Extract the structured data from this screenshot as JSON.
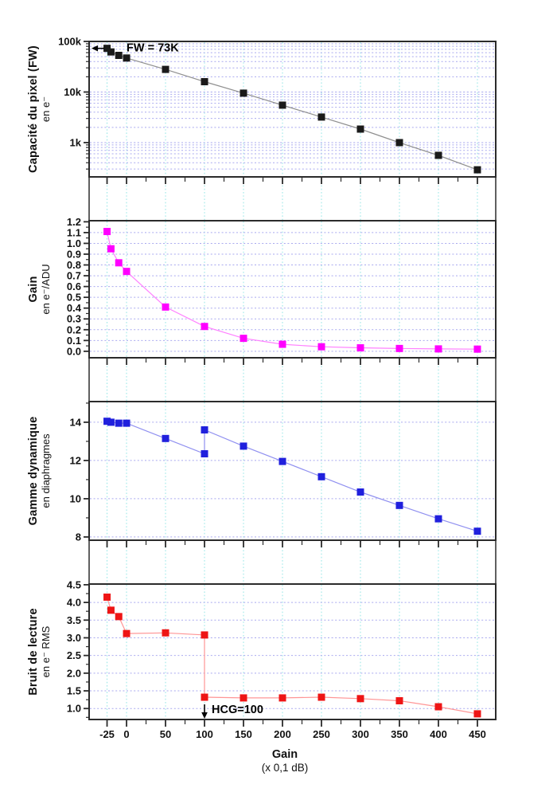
{
  "figure": {
    "x_axis": {
      "title": "Gain",
      "subtitle": "(x 0,1 dB)",
      "major_ticks": [
        -25,
        0,
        50,
        100,
        150,
        200,
        250,
        300,
        350,
        400,
        450
      ],
      "tick_labels": [
        "-25",
        "0",
        "50",
        "100",
        "150",
        "200",
        "250",
        "300",
        "350",
        "400",
        "450"
      ],
      "minor_ticks": [
        25,
        75,
        125,
        175,
        225,
        275,
        325,
        375,
        425
      ],
      "xlim": [
        -48,
        473.5
      ]
    },
    "style": {
      "frame_color": "#2b2b2b",
      "tick_color": "#2b2b2b",
      "h_grid_color": "#a9a9ef",
      "v_grid_color": "#93e6e6",
      "background": "#ffffff"
    }
  },
  "chart_data": [
    {
      "type": "line",
      "title": "Capacité du pixel (FW)",
      "subtitle": "en e⁻",
      "yscale": "log",
      "ylim": [
        210,
        100000
      ],
      "grid": true,
      "y_ticks": [
        100000,
        10000,
        1000
      ],
      "y_tick_labels": [
        "100k",
        "10k",
        "1k"
      ],
      "x": [
        -25,
        -20,
        -10,
        0,
        50,
        100,
        150,
        200,
        250,
        300,
        350,
        400,
        450
      ],
      "y": [
        73000,
        62000,
        53000,
        47000,
        28000,
        16000,
        9500,
        5500,
        3200,
        1850,
        1000,
        560,
        290
      ],
      "marker_color": "#1a1a1a",
      "line_color": "#8f8f8f",
      "annotation": {
        "text": "FW = 73K",
        "value": 73000,
        "arrow": "left-toward-axis"
      }
    },
    {
      "type": "line",
      "title": "Gain",
      "subtitle": "en e⁻/ADU",
      "yscale": "linear",
      "ylim": [
        -0.06,
        1.21
      ],
      "grid": true,
      "y_ticks": [
        0.0,
        0.1,
        0.2,
        0.3,
        0.4,
        0.5,
        0.6,
        0.7,
        0.8,
        0.9,
        1.0,
        1.1,
        1.2
      ],
      "y_tick_labels": [
        "0.0",
        "0.1",
        "0.2",
        "0.3",
        "0.4",
        "0.5",
        "0.6",
        "0.7",
        "0.8",
        "0.9",
        "1.0",
        "1.1",
        "1.2"
      ],
      "y_minor_ticks": [
        0.05,
        0.15,
        0.25,
        0.35,
        0.45,
        0.55,
        0.65,
        0.75,
        0.85,
        0.95,
        1.05,
        1.15
      ],
      "y_grid": [
        0.0,
        0.1,
        0.2,
        0.3,
        0.4,
        0.5,
        0.6,
        0.7,
        0.8,
        0.9,
        1.0,
        1.1
      ],
      "x": [
        -25,
        -20,
        -10,
        0,
        50,
        100,
        150,
        200,
        250,
        300,
        350,
        400,
        450
      ],
      "y": [
        1.11,
        0.95,
        0.82,
        0.74,
        0.41,
        0.23,
        0.12,
        0.065,
        0.042,
        0.032,
        0.026,
        0.022,
        0.02
      ],
      "marker_color": "#ff00ff",
      "line_color": "#ff80ff"
    },
    {
      "type": "line",
      "title": "Gamme dynamique",
      "subtitle": "en diaphragmes",
      "yscale": "linear",
      "ylim": [
        7.83,
        15.08
      ],
      "grid": true,
      "y_ticks": [
        8,
        10,
        12,
        14
      ],
      "y_tick_labels": [
        "8",
        "10",
        "12",
        "14"
      ],
      "y_minor_ticks": [
        9,
        11,
        13,
        15
      ],
      "y_grid": [
        8,
        10,
        12,
        14
      ],
      "x": [
        -25,
        -20,
        -10,
        0,
        50,
        100,
        100,
        150,
        200,
        250,
        300,
        350,
        400,
        450
      ],
      "y": [
        14.05,
        14.0,
        13.95,
        13.95,
        13.15,
        12.35,
        13.6,
        12.75,
        11.95,
        11.15,
        10.35,
        9.65,
        8.95,
        8.3
      ],
      "marker_color": "#2020dd",
      "line_color": "#9090f0"
    },
    {
      "type": "line",
      "title": "Bruit de lecture",
      "subtitle": "en e⁻ RMS",
      "yscale": "linear",
      "ylim": [
        0.69,
        4.52
      ],
      "grid": true,
      "y_ticks": [
        1.0,
        1.5,
        2.0,
        2.5,
        3.0,
        3.5,
        4.0,
        4.5
      ],
      "y_tick_labels": [
        "1.0",
        "1.5",
        "2.0",
        "2.5",
        "3.0",
        "3.5",
        "4.0",
        "4.5"
      ],
      "y_minor_ticks": [
        0.75,
        1.25,
        1.75,
        2.25,
        2.75,
        3.25,
        3.75,
        4.25
      ],
      "y_grid": [
        1.0,
        1.5,
        2.0,
        2.5,
        3.0,
        3.5,
        4.0
      ],
      "x": [
        -25,
        -20,
        -10,
        0,
        50,
        100,
        100,
        150,
        200,
        250,
        300,
        350,
        400,
        450
      ],
      "y": [
        4.15,
        3.78,
        3.6,
        3.12,
        3.14,
        3.08,
        1.32,
        1.3,
        1.3,
        1.32,
        1.28,
        1.22,
        1.05,
        0.85
      ],
      "marker_color": "#ee1515",
      "line_color": "#ff9595",
      "annotation": {
        "text": "HCG=100",
        "at_gain": 100,
        "arrow": "down-toward-axis"
      }
    }
  ]
}
